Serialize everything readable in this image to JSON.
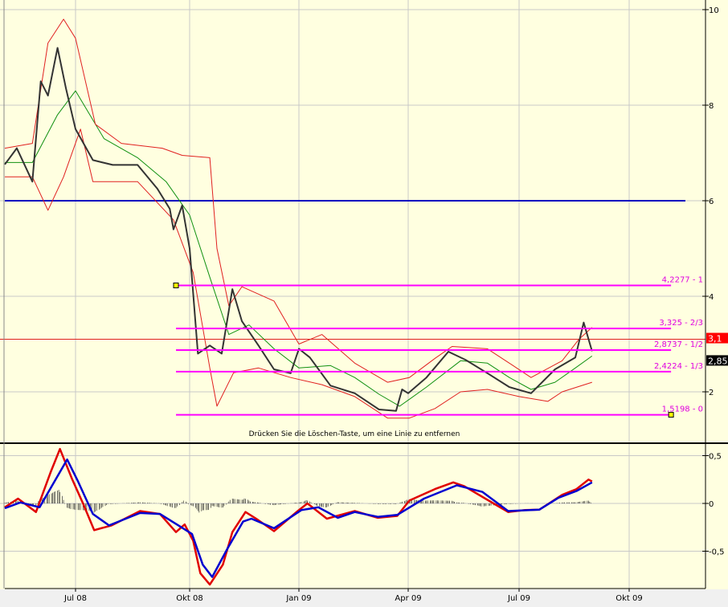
{
  "colors": {
    "background": "#ffffe0",
    "price": "#333333",
    "ma": "#109010",
    "bands": "#e02020",
    "hline": "#0000c0",
    "price_line": "#e02020",
    "fib": "#ff00ff",
    "macd": "#e00000",
    "signal": "#0000d0",
    "histogram": "#333333",
    "handle": "#ffff00"
  },
  "hint_text": "Drücken Sie die Löschen-Taste, um eine Linie zu entfernen",
  "chart_data": [
    {
      "type": "line",
      "title": "",
      "x_ticks": [
        {
          "date": "2008-07-01",
          "label": "Jul 08"
        },
        {
          "date": "2008-10-01",
          "label": "Okt 08"
        },
        {
          "date": "2009-01-01",
          "label": "Jan 09"
        },
        {
          "date": "2009-04-01",
          "label": "Apr 09"
        },
        {
          "date": "2009-07-01",
          "label": "Jul 09"
        },
        {
          "date": "2009-10-01",
          "label": "Okt 09"
        }
      ],
      "y_ticks": [
        {
          "v": 10,
          "label": "10"
        },
        {
          "v": 8,
          "label": "8"
        },
        {
          "v": 6,
          "label": "6"
        },
        {
          "v": 4,
          "label": "4"
        },
        {
          "v": 2,
          "label": "2"
        }
      ],
      "ylim": [
        0.7,
        10.2
      ],
      "grid": true,
      "series": [
        {
          "key": "price",
          "points": [
            [
              "2008-05-03",
              6.76
            ],
            [
              "2008-05-13",
              7.1
            ],
            [
              "2008-05-26",
              6.4
            ],
            [
              "2008-06-02",
              8.5
            ],
            [
              "2008-06-08",
              8.2
            ],
            [
              "2008-06-16",
              9.2
            ],
            [
              "2008-06-23",
              8.35
            ],
            [
              "2008-07-01",
              7.5
            ],
            [
              "2008-07-15",
              6.85
            ],
            [
              "2008-07-31",
              6.75
            ],
            [
              "2008-08-20",
              6.75
            ],
            [
              "2008-09-05",
              6.25
            ],
            [
              "2008-09-15",
              5.83
            ],
            [
              "2008-09-18",
              5.4
            ],
            [
              "2008-09-25",
              5.9
            ],
            [
              "2008-10-01",
              5.0
            ],
            [
              "2008-10-08",
              2.8
            ],
            [
              "2008-10-18",
              2.97
            ],
            [
              "2008-10-28",
              2.8
            ],
            [
              "2008-11-06",
              4.15
            ],
            [
              "2008-11-14",
              3.48
            ],
            [
              "2008-11-28",
              2.97
            ],
            [
              "2008-12-11",
              2.47
            ],
            [
              "2008-12-25",
              2.39
            ],
            [
              "2009-01-01",
              2.9
            ],
            [
              "2009-01-10",
              2.72
            ],
            [
              "2009-01-27",
              2.13
            ],
            [
              "2009-02-16",
              1.97
            ],
            [
              "2009-03-08",
              1.63
            ],
            [
              "2009-03-22",
              1.6
            ],
            [
              "2009-03-27",
              2.05
            ],
            [
              "2009-04-01",
              1.97
            ],
            [
              "2009-04-16",
              2.3
            ],
            [
              "2009-05-04",
              2.84
            ],
            [
              "2009-05-18",
              2.67
            ],
            [
              "2009-06-05",
              2.39
            ],
            [
              "2009-06-23",
              2.1
            ],
            [
              "2009-07-11",
              1.97
            ],
            [
              "2009-07-31",
              2.47
            ],
            [
              "2009-08-17",
              2.72
            ],
            [
              "2009-08-24",
              3.45
            ],
            [
              "2009-08-31",
              2.85
            ]
          ]
        },
        {
          "key": "ma",
          "points": [
            [
              "2008-05-03",
              6.8
            ],
            [
              "2008-05-26",
              6.8
            ],
            [
              "2008-06-16",
              7.8
            ],
            [
              "2008-07-01",
              8.3
            ],
            [
              "2008-07-24",
              7.3
            ],
            [
              "2008-08-20",
              6.9
            ],
            [
              "2008-09-12",
              6.4
            ],
            [
              "2008-10-01",
              5.7
            ],
            [
              "2008-10-18",
              4.4
            ],
            [
              "2008-11-03",
              3.2
            ],
            [
              "2008-11-20",
              3.4
            ],
            [
              "2008-12-11",
              2.9
            ],
            [
              "2009-01-01",
              2.5
            ],
            [
              "2009-01-27",
              2.55
            ],
            [
              "2009-02-16",
              2.3
            ],
            [
              "2009-03-08",
              1.95
            ],
            [
              "2009-03-25",
              1.7
            ],
            [
              "2009-04-16",
              2.1
            ],
            [
              "2009-05-14",
              2.65
            ],
            [
              "2009-06-05",
              2.6
            ],
            [
              "2009-06-23",
              2.3
            ],
            [
              "2009-07-11",
              2.05
            ],
            [
              "2009-07-31",
              2.2
            ],
            [
              "2009-08-17",
              2.5
            ],
            [
              "2009-08-31",
              2.75
            ]
          ]
        },
        {
          "key": "upper_band",
          "points": [
            [
              "2008-05-03",
              7.1
            ],
            [
              "2008-05-26",
              7.2
            ],
            [
              "2008-06-08",
              9.3
            ],
            [
              "2008-06-21",
              9.8
            ],
            [
              "2008-07-01",
              9.4
            ],
            [
              "2008-07-17",
              7.6
            ],
            [
              "2008-08-07",
              7.2
            ],
            [
              "2008-09-09",
              7.1
            ],
            [
              "2008-09-25",
              6.95
            ],
            [
              "2008-10-18",
              6.9
            ],
            [
              "2008-10-24",
              5.0
            ],
            [
              "2008-11-03",
              3.8
            ],
            [
              "2008-11-14",
              4.2
            ],
            [
              "2008-12-11",
              3.9
            ],
            [
              "2009-01-01",
              3.0
            ],
            [
              "2009-01-20",
              3.2
            ],
            [
              "2009-02-16",
              2.6
            ],
            [
              "2009-03-15",
              2.2
            ],
            [
              "2009-04-02",
              2.3
            ],
            [
              "2009-04-23",
              2.7
            ],
            [
              "2009-05-07",
              2.95
            ],
            [
              "2009-06-05",
              2.9
            ],
            [
              "2009-06-23",
              2.6
            ],
            [
              "2009-07-11",
              2.3
            ],
            [
              "2009-08-06",
              2.65
            ],
            [
              "2009-08-20",
              3.1
            ],
            [
              "2009-08-31",
              3.35
            ]
          ]
        },
        {
          "key": "lower_band",
          "points": [
            [
              "2008-05-03",
              6.5
            ],
            [
              "2008-05-26",
              6.5
            ],
            [
              "2008-06-08",
              5.8
            ],
            [
              "2008-06-21",
              6.5
            ],
            [
              "2008-07-05",
              7.5
            ],
            [
              "2008-07-15",
              6.4
            ],
            [
              "2008-08-20",
              6.4
            ],
            [
              "2008-09-18",
              5.6
            ],
            [
              "2008-10-04",
              4.5
            ],
            [
              "2008-10-18",
              2.5
            ],
            [
              "2008-10-24",
              1.7
            ],
            [
              "2008-11-07",
              2.4
            ],
            [
              "2008-11-28",
              2.5
            ],
            [
              "2008-12-25",
              2.3
            ],
            [
              "2009-01-20",
              2.15
            ],
            [
              "2009-02-16",
              1.9
            ],
            [
              "2009-03-15",
              1.45
            ],
            [
              "2009-04-02",
              1.45
            ],
            [
              "2009-04-23",
              1.65
            ],
            [
              "2009-05-14",
              2.0
            ],
            [
              "2009-06-05",
              2.05
            ],
            [
              "2009-07-01",
              1.9
            ],
            [
              "2009-07-25",
              1.8
            ],
            [
              "2009-08-06",
              2.0
            ],
            [
              "2009-08-31",
              2.2
            ]
          ]
        }
      ],
      "horizontal_lines": [
        {
          "key": "blue_line",
          "value": 6.0,
          "from": "2008-05-03",
          "to": "2009-11-17"
        },
        {
          "key": "current_price_line",
          "value": 3.1
        }
      ],
      "fibonacci": {
        "from": "2008-09-20",
        "to": "2009-11-05",
        "levels": [
          {
            "value": 4.2277,
            "label": "4,2277 - 1"
          },
          {
            "value": 3.325,
            "label": "3,325 - 2/3"
          },
          {
            "value": 2.8737,
            "label": "2,8737 - 1/2"
          },
          {
            "value": 2.4224,
            "label": "2,4224 - 1/3"
          },
          {
            "value": 1.5198,
            "label": "1,5198 - 0"
          }
        ]
      },
      "price_tags": [
        {
          "value": 3.1,
          "label": "3,1",
          "color": "#ff0000"
        },
        {
          "value": 2.85,
          "label": "2,85",
          "color": "#000000"
        }
      ]
    },
    {
      "type": "line",
      "title": "",
      "y_ticks": [
        {
          "v": 0.5,
          "label": "0,5"
        },
        {
          "v": 0,
          "label": "0"
        },
        {
          "v": -0.5,
          "label": "-0,5"
        }
      ],
      "ylim": [
        -0.9,
        0.62
      ],
      "grid": true,
      "series": [
        {
          "key": "macd",
          "points": [
            [
              "2008-05-03",
              -0.04
            ],
            [
              "2008-05-14",
              0.05
            ],
            [
              "2008-05-29",
              -0.09
            ],
            [
              "2008-06-10",
              0.32
            ],
            [
              "2008-06-18",
              0.57
            ],
            [
              "2008-06-28",
              0.26
            ],
            [
              "2008-07-07",
              0.0
            ],
            [
              "2008-07-16",
              -0.28
            ],
            [
              "2008-07-30",
              -0.23
            ],
            [
              "2008-08-22",
              -0.08
            ],
            [
              "2008-09-07",
              -0.11
            ],
            [
              "2008-09-20",
              -0.3
            ],
            [
              "2008-09-27",
              -0.22
            ],
            [
              "2008-10-04",
              -0.39
            ],
            [
              "2008-10-10",
              -0.73
            ],
            [
              "2008-10-18",
              -0.85
            ],
            [
              "2008-10-29",
              -0.64
            ],
            [
              "2008-11-06",
              -0.3
            ],
            [
              "2008-11-17",
              -0.09
            ],
            [
              "2008-11-26",
              -0.16
            ],
            [
              "2008-12-11",
              -0.29
            ],
            [
              "2008-12-31",
              -0.08
            ],
            [
              "2009-01-08",
              0.0
            ],
            [
              "2009-01-24",
              -0.16
            ],
            [
              "2009-02-16",
              -0.08
            ],
            [
              "2009-03-07",
              -0.15
            ],
            [
              "2009-03-23",
              -0.13
            ],
            [
              "2009-04-02",
              0.03
            ],
            [
              "2009-04-23",
              0.15
            ],
            [
              "2009-05-08",
              0.22
            ],
            [
              "2009-05-17",
              0.18
            ],
            [
              "2009-06-10",
              0.0
            ],
            [
              "2009-06-22",
              -0.09
            ],
            [
              "2009-07-06",
              -0.07
            ],
            [
              "2009-07-18",
              -0.065
            ],
            [
              "2009-07-26",
              0.0
            ],
            [
              "2009-08-06",
              0.09
            ],
            [
              "2009-08-18",
              0.15
            ],
            [
              "2009-08-28",
              0.25
            ],
            [
              "2009-08-31",
              0.23
            ]
          ]
        },
        {
          "key": "signal",
          "points": [
            [
              "2008-05-03",
              -0.05
            ],
            [
              "2008-05-16",
              0.01
            ],
            [
              "2008-06-01",
              -0.04
            ],
            [
              "2008-06-24",
              0.46
            ],
            [
              "2008-07-03",
              0.23
            ],
            [
              "2008-07-15",
              -0.11
            ],
            [
              "2008-07-28",
              -0.23
            ],
            [
              "2008-08-22",
              -0.1
            ],
            [
              "2008-09-07",
              -0.11
            ],
            [
              "2008-09-22",
              -0.23
            ],
            [
              "2008-10-03",
              -0.32
            ],
            [
              "2008-10-12",
              -0.64
            ],
            [
              "2008-10-20",
              -0.77
            ],
            [
              "2008-11-02",
              -0.47
            ],
            [
              "2008-11-15",
              -0.19
            ],
            [
              "2008-11-22",
              -0.16
            ],
            [
              "2008-12-11",
              -0.26
            ],
            [
              "2009-01-03",
              -0.07
            ],
            [
              "2009-01-17",
              -0.04
            ],
            [
              "2009-02-02",
              -0.15
            ],
            [
              "2009-02-16",
              -0.09
            ],
            [
              "2009-03-07",
              -0.14
            ],
            [
              "2009-03-23",
              -0.12
            ],
            [
              "2009-04-14",
              0.05
            ],
            [
              "2009-05-11",
              0.19
            ],
            [
              "2009-06-01",
              0.12
            ],
            [
              "2009-06-22",
              -0.08
            ],
            [
              "2009-07-18",
              -0.065
            ],
            [
              "2009-08-03",
              0.06
            ],
            [
              "2009-08-18",
              0.13
            ],
            [
              "2009-08-31",
              0.22
            ]
          ]
        }
      ]
    }
  ]
}
